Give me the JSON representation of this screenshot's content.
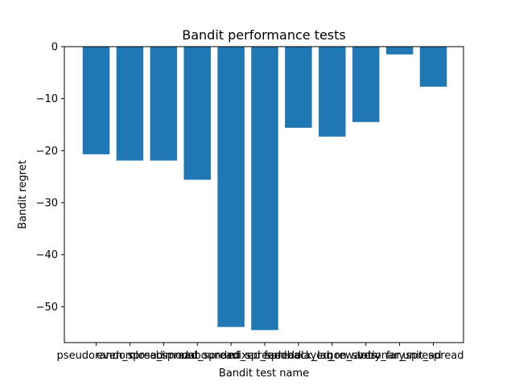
{
  "chart_data": {
    "type": "bar",
    "title": "Bandit performance tests",
    "xlabel": "Bandit test name",
    "ylabel": "Bandit regret",
    "categories": [
      "pseudorandom",
      "even_spread",
      "close_spread",
      "bimodal_spread",
      "unbounded_spread",
      "mixed_spread",
      "feedback_lag",
      "delayed_rewards",
      "non_stationary",
      "very_far_spread",
      "unit_spread"
    ],
    "values": [
      -20.7,
      -21.9,
      -21.9,
      -25.6,
      -53.9,
      -54.5,
      -15.6,
      -17.3,
      -14.5,
      -1.5,
      -7.7
    ],
    "ylim": [
      -56.9,
      0
    ],
    "yticks": [
      0,
      -10,
      -20,
      -30,
      -40,
      -50
    ],
    "ytick_labels": [
      "0",
      "−10",
      "−20",
      "−30",
      "−40",
      "−50"
    ],
    "bar_color": "#1f77b4",
    "grid": false,
    "legend": "none"
  }
}
